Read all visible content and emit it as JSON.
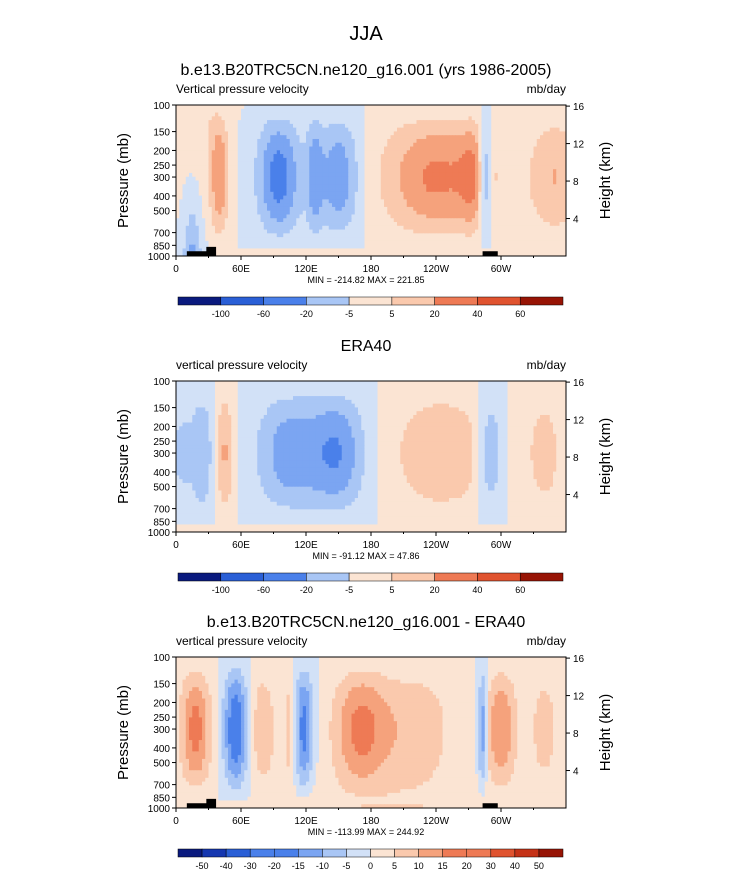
{
  "figure": {
    "title": "JJA",
    "colors": [
      "#0a1a7e",
      "#1537b0",
      "#2a5fd6",
      "#4a80ea",
      "#7ba5f2",
      "#a9c6f5",
      "#d2e1f7",
      "#fbe4d3",
      "#fac9ad",
      "#f5a27c",
      "#ee7a55",
      "#e0532f",
      "#c53217",
      "#971405"
    ]
  },
  "chart_data": [
    {
      "type": "heatmap",
      "title": "b.e13.B20TRC5CN.ne120_g16.001 (yrs 1986-2005)",
      "left_label": "Vertical pressure velocity",
      "right_label": "mb/day",
      "xlabel": "",
      "ylabel": "Pressure (mb)",
      "ylabel_right": "Height (km)",
      "x_ticks": [
        "0",
        "60E",
        "120E",
        "180",
        "120W",
        "60W"
      ],
      "y_ticks": [
        "100",
        "150",
        "200",
        "250",
        "300",
        "400",
        "500",
        "700",
        "850",
        "1000"
      ],
      "y_right_ticks": [
        "16",
        "12",
        "8",
        "4"
      ],
      "stats": "MIN = -214.82  MAX = 221.85",
      "colorbar_labels": [
        "-100",
        "-60",
        "-20",
        "-5",
        "5",
        "20",
        "40",
        "60"
      ],
      "ylim": [
        1000,
        100
      ],
      "xlim": [
        0,
        360
      ]
    },
    {
      "type": "heatmap",
      "title": "ERA40",
      "left_label": "vertical pressure velocity",
      "right_label": "mb/day",
      "xlabel": "",
      "ylabel": "Pressure (mb)",
      "ylabel_right": "Height (km)",
      "x_ticks": [
        "0",
        "60E",
        "120E",
        "180",
        "120W",
        "60W"
      ],
      "y_ticks": [
        "100",
        "150",
        "200",
        "250",
        "300",
        "400",
        "500",
        "700",
        "850",
        "1000"
      ],
      "y_right_ticks": [
        "16",
        "12",
        "8",
        "4"
      ],
      "stats": "MIN = -91.12  MAX = 47.86",
      "colorbar_labels": [
        "-100",
        "-60",
        "-20",
        "-5",
        "5",
        "20",
        "40",
        "60"
      ],
      "ylim": [
        1000,
        100
      ],
      "xlim": [
        0,
        360
      ]
    },
    {
      "type": "heatmap",
      "title": "b.e13.B20TRC5CN.ne120_g16.001 - ERA40",
      "left_label": "vertical pressure velocity",
      "right_label": "mb/day",
      "xlabel": "",
      "ylabel": "Pressure (mb)",
      "ylabel_right": "Height (km)",
      "x_ticks": [
        "0",
        "60E",
        "120E",
        "180",
        "120W",
        "60W"
      ],
      "y_ticks": [
        "100",
        "150",
        "200",
        "250",
        "300",
        "400",
        "500",
        "700",
        "850",
        "1000"
      ],
      "y_right_ticks": [
        "16",
        "12",
        "8",
        "4"
      ],
      "stats": "MIN = -113.99  MAX = 244.92",
      "colorbar_labels": [
        "-50",
        "-40",
        "-30",
        "-20",
        "-15",
        "-10",
        "-5",
        "0",
        "5",
        "10",
        "15",
        "20",
        "30",
        "40",
        "50"
      ],
      "ylim": [
        1000,
        100
      ],
      "xlim": [
        0,
        360
      ]
    }
  ]
}
